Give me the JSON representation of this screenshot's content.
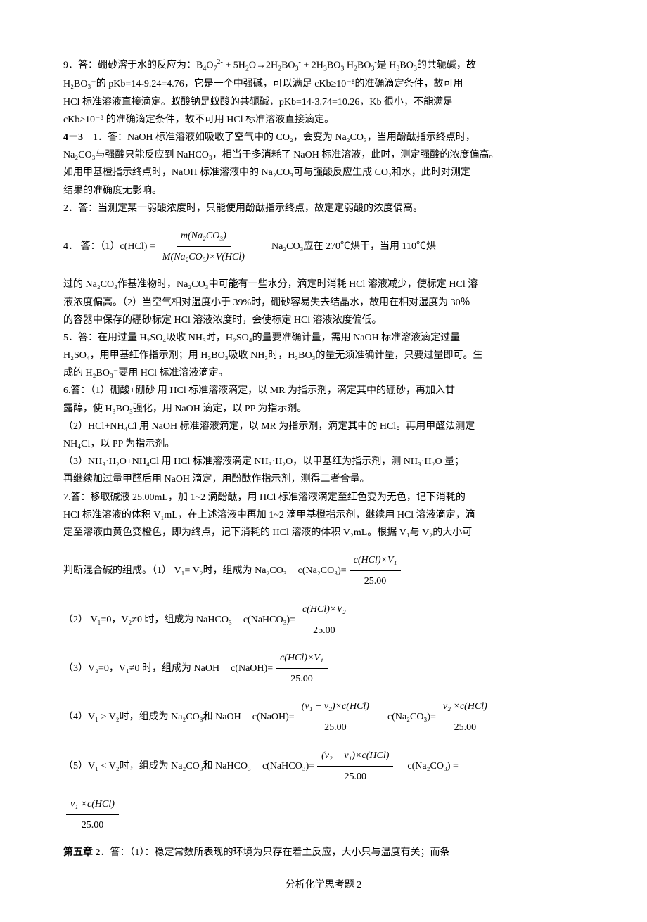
{
  "q9": {
    "line1_a": "9．答：硼砂溶于水的反应为：B",
    "line1_b": "4",
    "line1_c": "O",
    "line1_d": "7",
    "line1_e": "2-",
    "line1_f": " + 5H",
    "line1_g": "2",
    "line1_h": "O→2H",
    "line1_i": "2",
    "line1_j": "BO",
    "line1_k": "3",
    "line1_l": "-",
    "line1_m": " + 2H",
    "line1_n": "3",
    "line1_o": "BO",
    "line1_p": "3",
    "line1_q": "   H",
    "line1_r": "2",
    "line1_s": "BO",
    "line1_t": "3",
    "line1_u": "-",
    "line1_v": "是 H",
    "line1_w": "3",
    "line1_x": "BO",
    "line1_y": "3",
    "line1_z": "的共轭碱，故",
    "line2": "H₂BO₃⁻的 pKb=14-9.24=4.76，它是一个中强碱，可以满足 cKb≥10⁻⁸的准确滴定条件，故可用",
    "line3": "HCl 标准溶液直接滴定。蚁酸钠是蚁酸的共轭碱，pKb=14-3.74=10.26，Kb 很小，不能满足",
    "line4": "cKb≥10⁻⁸ 的准确滴定条件，故不可用 HCl 标准溶液直接滴定。"
  },
  "s43": {
    "label": "4－3",
    "q1_l1": "1．答：NaOH 标准溶液如吸收了空气中的 CO₂，会变为 Na₂CO₃，当用酚酞指示终点时，",
    "q1_l2": "Na₂CO₃与强酸只能反应到 NaHCO₃，相当于多消耗了 NaOH 标准溶液，此时，测定强酸的浓度偏高。",
    "q1_l3": "如用甲基橙指示终点时，NaOH 标准溶液中的 Na₂CO₃可与强酸反应生成 CO₂和水，此时对测定",
    "q1_l4": "结果的准确度无影响。",
    "q2": "2．答：当测定某一弱酸浓度时，只能使用酚酞指示终点，故定定弱酸的浓度偏高。",
    "q4_prefix": "4．  答：（1）",
    "q4_lhs": "c(HCl) = ",
    "q4_num": "m(Na₂CO₃)",
    "q4_den": "M(Na₂CO₃)×V(HCl)",
    "q4_suffix": "Na₂CO₃应在 270℃烘干，当用 110℃烘",
    "q4_l2": "过的 Na₂CO₃作基准物时，Na₂CO₃中可能有一些水分，滴定时消耗 HCl 溶液减少，使标定 HCl 溶",
    "q4_l3": "液浓度偏高。（2）当空气相对湿度小于 39%时，硼砂容易失去结晶水，故用在相对湿度为 30％",
    "q4_l4": "的容器中保存的硼砂标定 HCl 溶液浓度时，会使标定 HCl 溶液浓度偏低。",
    "q5_l1": "5．答：在用过量 H₂SO₄吸收 NH₃时，H₂SO₄的量要准确计量，需用 NaOH 标准溶液滴定过量",
    "q5_l2": "H₂SO₄，用甲基红作指示剂；用 H₃BO₃吸收 NH₃时，H₃BO₃的量无须准确计量，只要过量即可。生",
    "q5_l3": "成的 H₂BO₃⁻要用 HCl 标准溶液滴定。",
    "q6_l1": "6.答：（1）硼酸+硼砂    用 HCl 标准溶液滴定，以 MR 为指示剂，滴定其中的硼砂，再加入甘",
    "q6_l2": "露醇，使 H₃BO₃强化，用 NaOH 滴定，以 PP 为指示剂。",
    "q6_l3": "（2）HCl+NH₄Cl    用 NaOH 标准溶液滴定，以 MR 为指示剂，滴定其中的 HCl。再用甲醛法测定",
    "q6_l4": "NH₄Cl，以 PP 为指示剂。",
    "q6_l5": "（3）NH₃·H₂O+NH₄Cl       用 HCl 标准溶液滴定 NH₃·H₂O，以甲基红为指示剂，测 NH₃·H₂O 量；",
    "q6_l6": "再继续加过量甲醛后用 NaOH 滴定，用酚酞作指示剂，测得二者合量。",
    "q7_l1": "7.答：移取碱液 25.00mL，加 1~2 滴酚酞，用 HCl 标准溶液滴定至红色变为无色，记下消耗的",
    "q7_l2": "HCl 标准溶液的体积 V₁mL，在上述溶液中再加 1~2 滴甲基橙指示剂，继续用 HCl 溶液滴定，滴",
    "q7_l3": "定至溶液由黄色变橙色，即为终点，记下消耗的 HCl 溶液的体积 V₂mL。根据 V₁与 V₂的大小可",
    "q7_judge_prefix": "判断混合碱的组成。（1）    V₁= V₂时，组成为 Na₂CO₃",
    "q7_c_na2co3": "c(Na₂CO₃)= ",
    "f1_num": "c(HCl)×V₁",
    "f1_den": "25.00",
    "q7_2_prefix": "（2）   V₁=0，V₂≠0 时，组成为 NaHCO₃",
    "q7_c_nahco3": "c(NaHCO₃)= ",
    "f2_num": "c(HCl)×V₂",
    "f2_den": "25.00",
    "q7_3_prefix": "（3）V₂=0，V₁≠0 时，组成为 NaOH",
    "q7_c_naoh": "c(NaOH)= ",
    "f3_num": "c(HCl)×V₁",
    "f3_den": "25.00",
    "q7_4_prefix": "（4）V₁ > V₂时，组成为 Na₂CO₃和 NaOH",
    "q7_4_c_naoh": "c(NaOH)= ",
    "f4a_num": "(v₁ − v₂)×c(HCl)",
    "f4a_den": "25.00",
    "q7_4_c_na2co3": "c(Na₂CO₃)= ",
    "f4b_num": "v₂ ×c(HCl)",
    "f4b_den": "25.00",
    "q7_5_prefix": "（5）V₁ < V₂时，组成为 Na₂CO₃和 NaHCO₃",
    "q7_5_c_nahco3": "c(NaHCO₃)= ",
    "f5a_num": "(v₂ − v₁)×c(HCl)",
    "f5a_den": "25.00",
    "q7_5_c_na2co3": "c(Na₂CO₃)     =",
    "f5b_num": "v₁ ×c(HCl)",
    "f5b_den": "25.00"
  },
  "ch5": {
    "label": "第五章",
    "text": "2．答：（1）：稳定常数所表现的环境为只存在着主反应，大小只与温度有关；而条"
  },
  "footer": "分析化学思考题 2"
}
